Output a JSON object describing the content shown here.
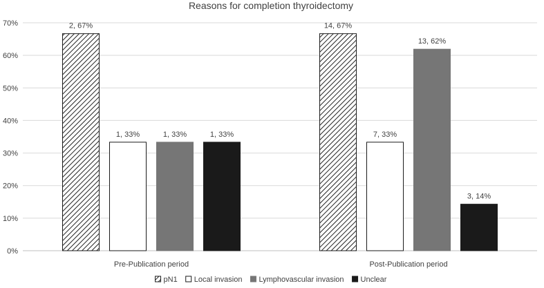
{
  "chart_data": {
    "type": "bar",
    "title": "Reasons for completion  thyroidectomy",
    "xlabel": "",
    "ylabel": "",
    "ylim": [
      0,
      70
    ],
    "yticks": [
      0,
      10,
      20,
      30,
      40,
      50,
      60,
      70
    ],
    "ytick_labels": [
      "0%",
      "10%",
      "20%",
      "30%",
      "40%",
      "50%",
      "60%",
      "70%"
    ],
    "grid": true,
    "legend_position": "bottom",
    "categories": [
      "Pre-Publication period",
      "Post-Publication period"
    ],
    "series": [
      {
        "name": "pN1",
        "values": [
          66.67,
          66.67
        ],
        "labels": [
          "2, 67%",
          "14, 67%"
        ],
        "color": "#ffffff",
        "pattern": "diagonal-hatch"
      },
      {
        "name": "Local invasion",
        "values": [
          33.33,
          33.33
        ],
        "labels": [
          "1, 33%",
          "7, 33%"
        ],
        "color": "#ffffff",
        "pattern": "none"
      },
      {
        "name": "Lymphovascular invasion",
        "values": [
          33.33,
          61.9
        ],
        "labels": [
          "1, 33%",
          "13, 62%"
        ],
        "color": "#767676",
        "pattern": "none"
      },
      {
        "name": "Unclear",
        "values": [
          33.33,
          14.29
        ],
        "labels": [
          "1, 33%",
          "3, 14%"
        ],
        "color": "#1a1a1a",
        "pattern": "none"
      }
    ]
  }
}
